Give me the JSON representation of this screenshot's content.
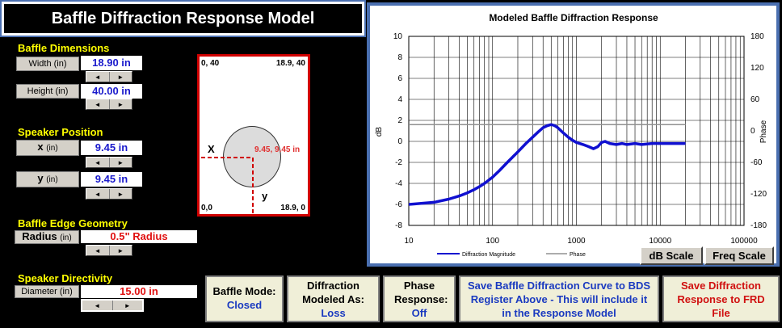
{
  "title": "Baffle Diffraction Response Model",
  "baffle_dimensions": {
    "section": "Baffle Dimensions",
    "width_label": "Width (in)",
    "width_value": "18.90 in",
    "height_label": "Height (in)",
    "height_value": "40.00 in"
  },
  "speaker_position": {
    "section": "Speaker Position",
    "x_label_main": "x",
    "x_label_unit": "(in)",
    "x_value": "9.45 in",
    "y_label_main": "y",
    "y_label_unit": "(in)",
    "y_value": "9.45 in"
  },
  "edge_geometry": {
    "section": "Baffle Edge Geometry",
    "radius_label_main": "Radius",
    "radius_label_unit": "(in)",
    "radius_value": "0.5\" Radius"
  },
  "directivity": {
    "section": "Speaker Directivity",
    "diameter_label": "Diameter (in)",
    "diameter_value": "15.00 in"
  },
  "spinner": {
    "left": "◄",
    "right": "►"
  },
  "baffle_drawing": {
    "top_left": "0, 40",
    "top_right": "18.9, 40",
    "bottom_left": "0,0",
    "bottom_right": "18.9, 0",
    "speaker_coord": "9.45, 9.45 in",
    "x_marker": "X",
    "y_marker": "y"
  },
  "chart": {
    "title": "Modeled Baffle Diffraction Response",
    "ylabel": "dB",
    "y2label": "Phase",
    "legend_magnitude": "Diffraction Magnitude",
    "legend_phase": "Phase"
  },
  "chart_data": {
    "type": "line",
    "title": "Modeled Baffle Diffraction Response",
    "xscale": "log",
    "xlim": [
      10,
      100000
    ],
    "ylim": [
      -8,
      10
    ],
    "y2lim": [
      -180,
      180
    ],
    "xticks": [
      "10",
      "100",
      "1000",
      "10000",
      "100000"
    ],
    "yticks": [
      "10",
      "8",
      "6",
      "4",
      "2",
      "0",
      "-2",
      "-4",
      "-6",
      "-8"
    ],
    "y2ticks": [
      "180",
      "120",
      "60",
      "0",
      "-60",
      "-120",
      "-180"
    ],
    "ylabel": "dB",
    "y2label": "Phase",
    "legend_position": "bottom",
    "grid": true,
    "series": [
      {
        "name": "Diffraction Magnitude",
        "color": "#1010d0",
        "axis": "left",
        "x": [
          10,
          14,
          20,
          30,
          40,
          50,
          60,
          70,
          80,
          100,
          120,
          150,
          200,
          250,
          300,
          350,
          400,
          450,
          500,
          550,
          600,
          700,
          800,
          900,
          1000,
          1200,
          1400,
          1600,
          1800,
          2000,
          2200,
          2500,
          3000,
          3500,
          4000,
          5000,
          6000,
          8000,
          10000,
          15000,
          20000
        ],
        "y": [
          -6.0,
          -5.9,
          -5.8,
          -5.5,
          -5.2,
          -4.9,
          -4.6,
          -4.3,
          -4.0,
          -3.4,
          -2.8,
          -2.0,
          -1.0,
          -0.2,
          0.4,
          0.9,
          1.3,
          1.5,
          1.6,
          1.5,
          1.3,
          0.8,
          0.4,
          0.1,
          -0.1,
          -0.3,
          -0.5,
          -0.7,
          -0.5,
          -0.1,
          0.0,
          -0.2,
          -0.3,
          -0.2,
          -0.3,
          -0.2,
          -0.3,
          -0.2,
          -0.2,
          -0.2,
          -0.2
        ]
      },
      {
        "name": "Phase",
        "color": "#909090",
        "axis": "right",
        "x": [
          10,
          20000
        ],
        "y": [
          12,
          12
        ]
      }
    ]
  },
  "scale_buttons": {
    "db": "dB Scale",
    "freq": "Freq Scale"
  },
  "buttons": {
    "baffle_mode_label": "Baffle Mode:",
    "baffle_mode_value": "Closed",
    "diffraction_label": "Diffraction Modeled As:",
    "diffraction_value": "Loss",
    "phase_label": "Phase Response:",
    "phase_value": "Off",
    "save_bds": "Save Baffle Diffraction Curve to BDS Register Above - This will include it in the Response Model",
    "save_frd": "Save Diffraction Response to FRD File"
  }
}
